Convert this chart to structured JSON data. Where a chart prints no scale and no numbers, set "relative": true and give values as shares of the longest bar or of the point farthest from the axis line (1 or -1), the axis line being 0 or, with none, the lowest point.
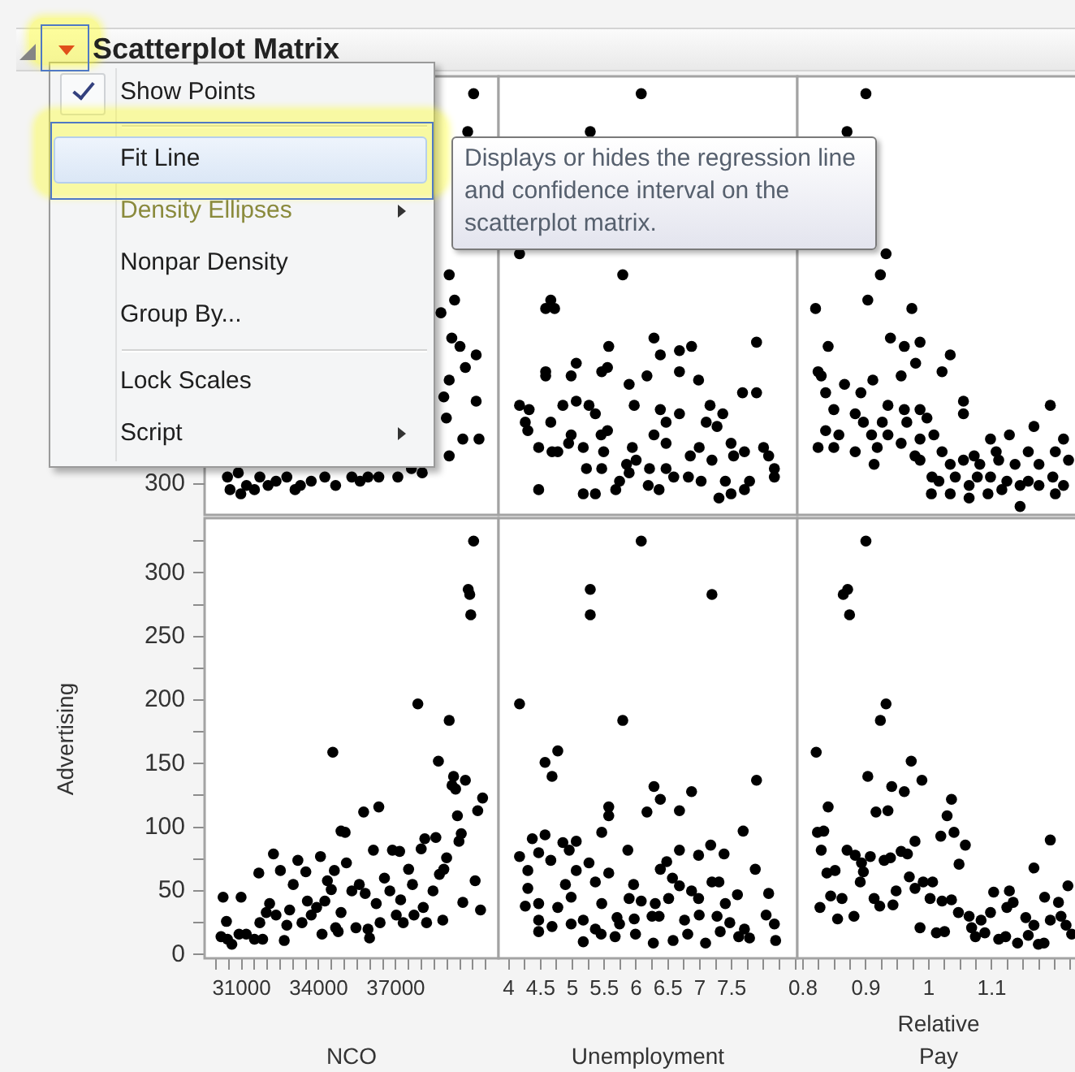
{
  "chart_data": [
    {
      "type": "scatter",
      "title": "Scatterplot Matrix",
      "x": [
        40030,
        39800,
        39080,
        39290,
        38760,
        39180,
        39500,
        40130,
        39710,
        39080,
        38870,
        40130,
        38970,
        39610,
        40240,
        39080,
        30450,
        30550,
        30870,
        30970,
        31190,
        31500,
        31710,
        32030,
        32340,
        32760,
        33080,
        33290,
        33710,
        34240,
        34660,
        35290,
        35610,
        35920,
        36340,
        37080,
        37610,
        38030
      ],
      "values": [
        1,
        0.91,
        0.57,
        0.51,
        0.48,
        0.42,
        0.4,
        0.38,
        0.35,
        0.32,
        0.28,
        0.27,
        0.23,
        0.18,
        0.18,
        0.14,
        0.09,
        0.06,
        0.1,
        0.05,
        0.07,
        0.06,
        0.09,
        0.07,
        0.08,
        0.09,
        0.06,
        0.07,
        0.08,
        0.09,
        0.07,
        0.09,
        0.08,
        0.09,
        0.09,
        0.09,
        0.11,
        0.1
      ],
      "color": "#000000",
      "marker": "circle",
      "relative": true,
      "xlim": [
        29560,
        41000
      ],
      "tick_labels": false,
      "annotations": [
        "300",
        "Show Points",
        "Fit Line",
        "Density Ellipses",
        "Nonpar Density",
        "Group By...",
        "Lock Scales",
        "Script",
        "Displays or hides the regression line and confidence interval on the scatterplot matrix."
      ]
    },
    {
      "type": "scatter",
      "x": [
        6.08,
        5.28,
        4.17,
        5.79,
        4.66,
        4.58,
        4.72,
        7.89,
        6.28,
        6.38,
        5.57,
        6.68,
        6.87,
        4.58,
        4.58,
        5.06,
        4.98,
        5.46,
        5.55,
        5.89,
        6.17,
        6.68,
        6.98,
        7.67,
        7.89,
        4.17,
        4.32,
        4.85,
        5.06,
        5.26,
        5.97,
        6.38,
        6.68,
        7.16,
        7.36,
        4.26,
        4.66,
        5.36,
        6.47,
        7.1,
        4.3,
        4.98,
        5.45,
        5.55,
        6.28,
        7.27,
        4.47,
        4.94,
        5.17,
        5.49,
        5.94,
        6.47,
        6.99,
        7.49,
        8,
        4.68,
        4.77,
        5.22,
        5.46,
        5.85,
        6,
        6.21,
        6.47,
        6.85,
        7.19,
        7.53,
        7.7,
        8.08,
        4.47,
        5.17,
        5.36,
        5.68,
        5.74,
        5.89,
        6.19,
        6.36,
        6.59,
        6.82,
        7.02,
        7.3,
        7.49,
        7.7,
        7.78,
        8.17,
        8.17,
        7.4
      ],
      "values": [
        1,
        0.91,
        0.62,
        0.57,
        0.51,
        0.49,
        0.49,
        0.41,
        0.42,
        0.38,
        0.4,
        0.39,
        0.4,
        0.34,
        0.33,
        0.36,
        0.33,
        0.34,
        0.35,
        0.31,
        0.33,
        0.34,
        0.32,
        0.29,
        0.29,
        0.26,
        0.25,
        0.26,
        0.27,
        0.26,
        0.26,
        0.25,
        0.24,
        0.26,
        0.24,
        0.22,
        0.22,
        0.24,
        0.22,
        0.22,
        0.2,
        0.19,
        0.19,
        0.2,
        0.19,
        0.21,
        0.16,
        0.17,
        0.16,
        0.15,
        0.16,
        0.17,
        0.16,
        0.17,
        0.16,
        0.15,
        0.15,
        0.11,
        0.11,
        0.12,
        0.13,
        0.11,
        0.11,
        0.14,
        0.13,
        0.14,
        0.15,
        0.14,
        0.06,
        0.05,
        0.05,
        0.06,
        0.08,
        0.1,
        0.07,
        0.06,
        0.09,
        0.09,
        0.08,
        0.04,
        0.05,
        0.06,
        0.08,
        0.09,
        0.11,
        0.08
      ],
      "color": "#000000",
      "marker": "circle",
      "relative": true,
      "xlim": [
        3.84,
        8.53
      ],
      "tick_labels": false
    },
    {
      "type": "scatter",
      "x": [
        0.9,
        0.87,
        0.932,
        0.923,
        0.82,
        0.903,
        0.973,
        0.84,
        0.939,
        0.961,
        0.986,
        0.824,
        0.829,
        0.866,
        0.911,
        0.956,
        0.979,
        1.021,
        1.034,
        1.055,
        1.055,
        1.193,
        0.836,
        0.849,
        0.892,
        0.883,
        0.935,
        0.961,
        0.986,
        0.896,
        0.926,
        0.965,
        0.997,
        1.167,
        0.836,
        0.857,
        0.909,
        0.935,
        0.986,
        1.008,
        1.098,
        1.128,
        1.214,
        0.824,
        0.849,
        0.883,
        0.918,
        0.956,
        0.978,
        1.021,
        1.072,
        1.107,
        1.158,
        1.201,
        0.913,
        0.986,
        1.034,
        1.055,
        1.081,
        1.111,
        1.137,
        1.175,
        1.222,
        1.005,
        1.016,
        1.042,
        1.064,
        1.077,
        1.098,
        1.124,
        1.145,
        1.158,
        1.175,
        1.197,
        1.214,
        1.004,
        1.034,
        1.064,
        1.094,
        1.145,
        1.201,
        1.116
      ],
      "values": [
        1,
        0.91,
        0.62,
        0.57,
        0.49,
        0.51,
        0.49,
        0.4,
        0.42,
        0.4,
        0.41,
        0.34,
        0.33,
        0.31,
        0.32,
        0.33,
        0.36,
        0.34,
        0.38,
        0.27,
        0.24,
        0.26,
        0.29,
        0.25,
        0.29,
        0.24,
        0.26,
        0.25,
        0.25,
        0.22,
        0.22,
        0.22,
        0.23,
        0.21,
        0.2,
        0.19,
        0.19,
        0.19,
        0.18,
        0.19,
        0.18,
        0.19,
        0.18,
        0.16,
        0.16,
        0.15,
        0.16,
        0.17,
        0.14,
        0.15,
        0.14,
        0.15,
        0.15,
        0.15,
        0.12,
        0.13,
        0.12,
        0.13,
        0.12,
        0.13,
        0.12,
        0.12,
        0.13,
        0.09,
        0.08,
        0.09,
        0.07,
        0.09,
        0.09,
        0.08,
        0.07,
        0.08,
        0.07,
        0.09,
        0.07,
        0.05,
        0.05,
        0.04,
        0.05,
        0.02,
        0.05,
        0.06
      ],
      "color": "#000000",
      "marker": "circle",
      "relative": true,
      "xlim": [
        0.791,
        1.24
      ],
      "tick_labels": false
    },
    {
      "type": "scatter",
      "xlabel": "NCO",
      "ylabel": "Advertising",
      "x": [
        30280,
        30200,
        30410,
        30450,
        30620,
        30980,
        30900,
        31180,
        31500,
        31670,
        31710,
        31820,
        31960,
        32090,
        32240,
        32340,
        32510,
        32660,
        32760,
        32870,
        33010,
        33190,
        33350,
        33500,
        33560,
        33710,
        33920,
        34070,
        34130,
        34240,
        34340,
        34490,
        34550,
        34660,
        34610,
        34760,
        34870,
        35030,
        35080,
        34870,
        35290,
        35450,
        35580,
        35750,
        35810,
        35920,
        35980,
        36130,
        36240,
        36340,
        36390,
        36560,
        36770,
        36870,
        37020,
        37150,
        37190,
        37290,
        37500,
        37650,
        37710,
        37860,
        37990,
        38070,
        38130,
        38200,
        38450,
        38560,
        38660,
        38700,
        38830,
        38870,
        38980,
        39080,
        39190,
        39250,
        39330,
        39400,
        39460,
        39550,
        39610,
        39710,
        39820,
        39880,
        39920,
        40030,
        40090,
        40190,
        40300,
        40380
      ],
      "values": [
        45,
        14,
        26,
        12,
        8,
        45,
        16,
        16,
        12,
        64,
        25,
        12,
        33,
        40,
        79,
        31,
        66,
        11,
        23,
        35,
        55,
        74,
        25,
        65,
        42,
        31,
        37,
        77,
        16,
        42,
        58,
        51,
        159,
        21,
        66,
        18,
        97,
        96,
        72,
        33,
        50,
        21,
        55,
        112,
        48,
        20,
        13,
        82,
        40,
        116,
        25,
        60,
        50,
        82,
        31,
        81,
        43,
        25,
        67,
        55,
        31,
        197,
        83,
        37,
        91,
        25,
        50,
        92,
        152,
        63,
        27,
        67,
        76,
        184,
        133,
        140,
        130,
        109,
        89,
        95,
        41,
        137,
        287,
        283,
        267,
        325,
        58,
        113,
        35,
        123
      ],
      "color": "#000000",
      "marker": "circle",
      "xlim": [
        29560,
        41000
      ],
      "xticks": [
        {
          "value": 30000,
          "label": null
        },
        {
          "value": 30500,
          "label": null
        },
        31000,
        {
          "value": 31500,
          "label": null
        },
        {
          "value": 32000,
          "label": null
        },
        {
          "value": 32500,
          "label": null
        },
        {
          "value": 33000,
          "label": null
        },
        {
          "value": 33500,
          "label": null
        },
        34000,
        {
          "value": 34500,
          "label": null
        },
        {
          "value": 35000,
          "label": null
        },
        {
          "value": 35500,
          "label": null
        },
        {
          "value": 36000,
          "label": null
        },
        {
          "value": 36500,
          "label": null
        },
        37000,
        {
          "value": 37500,
          "label": null
        },
        {
          "value": 38000,
          "label": null
        },
        {
          "value": 38500,
          "label": null
        },
        {
          "value": 39000,
          "label": null
        },
        {
          "value": 39500,
          "label": null
        },
        {
          "value": 40000,
          "label": null
        },
        {
          "value": 40500,
          "label": null
        }
      ],
      "ylim": [
        -3,
        343
      ],
      "yticks": [
        0,
        {
          "value": 25,
          "label": null
        },
        50,
        {
          "value": 75,
          "label": null
        },
        100,
        {
          "value": 125,
          "label": null
        },
        150,
        {
          "value": 175,
          "label": null
        },
        200,
        {
          "value": 225,
          "label": null
        },
        250,
        {
          "value": 275,
          "label": null
        },
        300,
        {
          "value": 325,
          "label": null
        }
      ]
    },
    {
      "type": "scatter",
      "xlabel": "Unemployment",
      "x": [
        6.08,
        5.28,
        5.28,
        7.19,
        4.17,
        5.79,
        4.77,
        4.57,
        4.68,
        7.89,
        6.28,
        6.87,
        6.38,
        5.57,
        5.57,
        6.17,
        6.68,
        5.46,
        7.68,
        4.37,
        4.57,
        4.85,
        5.06,
        4.95,
        4.17,
        4.47,
        4.66,
        5.87,
        5.26,
        6.68,
        6.98,
        7.17,
        7.38,
        4.3,
        5.06,
        5.57,
        6.38,
        6.48,
        6.57,
        7.87,
        4.3,
        4.89,
        5.36,
        5.96,
        6.68,
        7.19,
        7.3,
        4.26,
        4.47,
        4.77,
        4.98,
        5.46,
        5.89,
        6.08,
        6.3,
        6.51,
        6.87,
        6.98,
        7.4,
        7.59,
        8.08,
        4.47,
        4.68,
        4.98,
        5.17,
        5.36,
        5.7,
        5.74,
        5.97,
        6.25,
        6.36,
        6.76,
        6.99,
        7.27,
        7.47,
        7.7,
        8.04,
        8.17,
        4.47,
        5.17,
        5.45,
        5.67,
        5.99,
        6.27,
        6.58,
        6.81,
        7.09,
        7.32,
        7.61,
        7.78,
        8.19
      ],
      "values": [
        325,
        287,
        267,
        283,
        197,
        184,
        160,
        151,
        140,
        137,
        132,
        128,
        122,
        116,
        109,
        112,
        113,
        96,
        97,
        91,
        94,
        88,
        89,
        82,
        77,
        80,
        74,
        82,
        72,
        82,
        78,
        86,
        79,
        66,
        66,
        64,
        67,
        73,
        60,
        67,
        52,
        55,
        57,
        55,
        54,
        57,
        57,
        38,
        40,
        37,
        45,
        40,
        44,
        42,
        40,
        44,
        50,
        44,
        40,
        47,
        48,
        27,
        22,
        24,
        27,
        20,
        29,
        24,
        28,
        30,
        30,
        27,
        31,
        30,
        25,
        20,
        31,
        24,
        18,
        10,
        16,
        14,
        16,
        9,
        11,
        16,
        9,
        18,
        14,
        13,
        11
      ],
      "color": "#000000",
      "marker": "circle",
      "xlim": [
        3.84,
        8.53
      ],
      "xticks": [
        4,
        {
          "value": 4.25,
          "label": null
        },
        4.5,
        {
          "value": 4.75,
          "label": null
        },
        5,
        {
          "value": 5.25,
          "label": null
        },
        5.5,
        {
          "value": 5.75,
          "label": null
        },
        6,
        {
          "value": 6.25,
          "label": null
        },
        6.5,
        {
          "value": 6.75,
          "label": null
        },
        7,
        {
          "value": 7.25,
          "label": null
        },
        7.5,
        {
          "value": 7.75,
          "label": null
        },
        {
          "value": 8,
          "label": null
        },
        {
          "value": 8.25,
          "label": null
        },
        {
          "value": 8.5,
          "label": null
        }
      ],
      "ylim": [
        -3,
        343
      ],
      "tick_labels": "x"
    },
    {
      "type": "scatter",
      "xlabel": "Relative Pay",
      "x": [
        0.9,
        0.864,
        0.871,
        0.874,
        0.932,
        0.923,
        0.821,
        0.972,
        0.903,
        0.989,
        0.941,
        0.961,
        0.84,
        1.036,
        0.916,
        0.935,
        1.029,
        0.823,
        0.833,
        1.019,
        1.04,
        1.193,
        0.829,
        0.978,
        1.058,
        0.87,
        0.883,
        0.907,
        0.956,
        0.966,
        0.929,
        0.939,
        0.893,
        1.048,
        0.838,
        0.851,
        0.896,
        0.891,
        1.167,
        0.969,
        0.948,
        0.978,
        0.991,
        1.006,
        1.221,
        0.844,
        0.862,
        0.913,
        0.922,
        0.943,
        1.002,
        1.021,
        1.036,
        1.103,
        1.128,
        1.184,
        1.206,
        0.827,
        0.855,
        0.881,
        1.047,
        1.064,
        1.083,
        1.098,
        1.124,
        1.134,
        1.154,
        1.167,
        1.193,
        1.21,
        0.986,
        1.012,
        1.025,
        1.068,
        1.074,
        1.089,
        1.111,
        1.122,
        1.141,
        1.158,
        1.174,
        1.183,
        1.218,
        1.227
      ],
      "values": [
        325,
        283,
        287,
        267,
        197,
        184,
        159,
        152,
        140,
        137,
        132,
        128,
        116,
        122,
        112,
        113,
        109,
        96,
        97,
        93,
        96,
        90,
        82,
        89,
        86,
        82,
        78,
        77,
        81,
        79,
        74,
        76,
        72,
        71,
        64,
        66,
        65,
        57,
        68,
        61,
        50,
        52,
        57,
        57,
        54,
        46,
        44,
        44,
        38,
        39,
        44,
        42,
        43,
        49,
        50,
        45,
        41,
        37,
        28,
        30,
        33,
        30,
        27,
        33,
        37,
        41,
        29,
        23,
        27,
        30,
        21,
        17,
        18,
        21,
        14,
        17,
        12,
        14,
        9,
        15,
        8,
        9,
        23,
        16
      ],
      "color": "#000000",
      "marker": "circle",
      "xlim": [
        0.791,
        1.24
      ],
      "xticks": [
        0.8,
        {
          "value": 0.825,
          "label": null
        },
        {
          "value": 0.85,
          "label": null
        },
        {
          "value": 0.875,
          "label": null
        },
        0.9,
        {
          "value": 0.925,
          "label": null
        },
        {
          "value": 0.95,
          "label": null
        },
        {
          "value": 0.975,
          "label": null
        },
        1,
        {
          "value": 1.025,
          "label": null
        },
        {
          "value": 1.05,
          "label": null
        },
        {
          "value": 1.075,
          "label": null
        },
        1.1,
        {
          "value": 1.125,
          "label": null
        },
        {
          "value": 1.15,
          "label": null
        },
        {
          "value": 1.175,
          "label": null
        },
        {
          "value": 1.2,
          "label": null
        },
        {
          "value": 1.225,
          "label": null
        }
      ],
      "ylim": [
        -3,
        343
      ],
      "tick_labels": "x"
    }
  ]
}
